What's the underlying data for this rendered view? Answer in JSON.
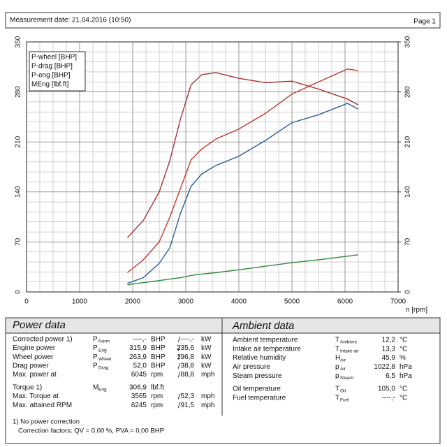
{
  "header": {
    "title": "Measurement date: 21.04.2016 (10:50)",
    "page": "Page 1"
  },
  "chart_data": {
    "type": "line",
    "xlabel": "n [rpm]",
    "x": [
      1900,
      2200,
      2500,
      2700,
      2900,
      3100,
      3300,
      3565,
      4000,
      4500,
      5000,
      5500,
      6045,
      6245
    ],
    "series": [
      {
        "name": "P-wheel [BHP]",
        "color": "#2c5b9c",
        "values": [
          12,
          20,
          40,
          62,
          110,
          148,
          165,
          177,
          190,
          212,
          237,
          248,
          264,
          256
        ]
      },
      {
        "name": "P-drag [BHP]",
        "color": "#2f8a3a",
        "values": [
          10,
          13,
          16,
          18,
          20,
          23,
          25,
          27,
          31,
          36,
          41,
          45,
          50,
          52
        ]
      },
      {
        "name": "P-eng [BHP]",
        "color": "#c0392b",
        "values": [
          27,
          45,
          70,
          105,
          145,
          185,
          200,
          214,
          228,
          250,
          277,
          294,
          312,
          310
        ]
      },
      {
        "name": "MEng [lbf.ft]",
        "color": "#a83232",
        "values": [
          76,
          100,
          140,
          184,
          242,
          290,
          304,
          307,
          299,
          293,
          295,
          284,
          270,
          262
        ]
      }
    ],
    "xlim": [
      0,
      7000
    ],
    "xticks": [
      0,
      1000,
      2000,
      3000,
      4000,
      5000,
      6000,
      7000
    ],
    "ylim": [
      0,
      350
    ],
    "yticks": [
      0,
      70,
      140,
      210,
      280,
      350
    ],
    "y2lim": [
      0,
      350
    ],
    "y2ticks": [
      0,
      70,
      140,
      210,
      280,
      350
    ],
    "grid": true,
    "legend": "upper left"
  },
  "power_data": {
    "title": "Power data",
    "rows": [
      {
        "label": "Corrected power 1)",
        "symbol": "P",
        "sub": "Norm",
        "value": "----,-",
        "unit": "BHP",
        "value2": "----,-",
        "unit2": "kW",
        "color": "#c0392b"
      },
      {
        "label": "Engine power",
        "symbol": "P",
        "sub": "Eng",
        "value": "315,9",
        "unit": "BHP",
        "value2": "235,6",
        "unit2": "kW",
        "color": "#c0392b"
      },
      {
        "label": "Wheel power",
        "symbol": "P",
        "sub": "Wheel",
        "value": "263,9",
        "unit": "BHP",
        "value2": "196,8",
        "unit2": "kW",
        "color": "#2c5b9c"
      },
      {
        "label": "Drag power",
        "symbol": "P",
        "sub": "Drag",
        "value": "52,0",
        "unit": "BHP",
        "value2": "38,8",
        "unit2": "kW",
        "color": "#2f8a3a"
      },
      {
        "label": "Max. power at",
        "value": "6045",
        "unit": "rpm",
        "value2": "88,8",
        "unit2": "mph",
        "color": "#111"
      },
      {
        "label": "Torque 1)",
        "symbol": "M",
        "sub": "Eng",
        "value": "306,9",
        "unit": "lbf.ft",
        "color": "#c0392b"
      },
      {
        "label": "Max. Torque at",
        "value": "3565",
        "unit": "rpm",
        "value2": "52,3",
        "unit2": "mph",
        "color": "#111"
      },
      {
        "label": "Max. attained RPM",
        "value": "6245",
        "unit": "rpm",
        "value2": "91,5",
        "unit2": "mph",
        "color": "#111"
      }
    ],
    "notes": [
      "1) No power correction",
      "Correction factors: QV = 0,00 %, PVA = 0,00 BHP"
    ]
  },
  "ambient_data": {
    "title": "Ambient data",
    "rows": [
      {
        "label": "Ambient temperature",
        "symbol": "T",
        "sub": "Ambient",
        "value": "12,2",
        "unit": "°C"
      },
      {
        "label": "Intake air temperature",
        "symbol": "T",
        "sub": "Intake air",
        "value": "13,3",
        "unit": "°C"
      },
      {
        "label": "Relative humidity",
        "symbol": "H",
        "sub": "Air",
        "value": "45,9",
        "unit": "%"
      },
      {
        "label": "Air pressure",
        "symbol": "p",
        "sub": "Air",
        "value": "1022,8",
        "unit": "hPa"
      },
      {
        "label": "Steam pressure",
        "symbol": "p",
        "sub": "Steam",
        "value": "6,5",
        "unit": "hPa"
      },
      {
        "label": "Oil temperature",
        "symbol": "T",
        "sub": "Oil",
        "value": "105,0",
        "unit": "°C"
      },
      {
        "label": "Fuel temperature",
        "symbol": "T",
        "sub": "Fuel",
        "value": "----,-",
        "unit": "°C"
      }
    ]
  }
}
